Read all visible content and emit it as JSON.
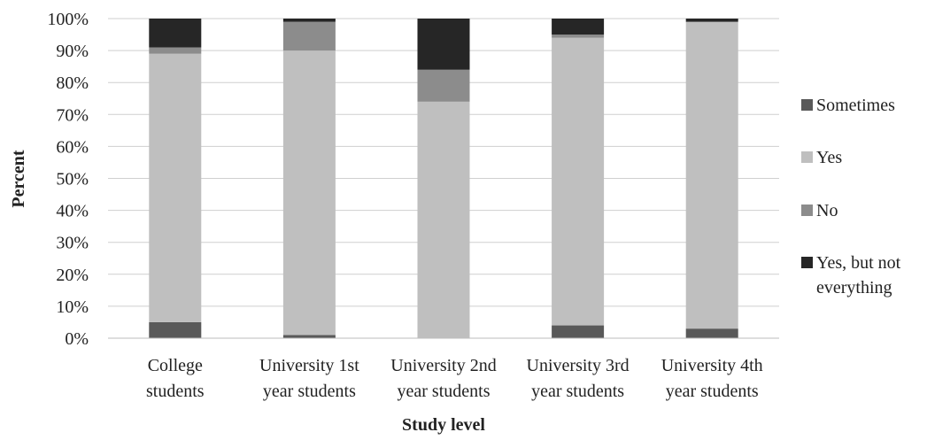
{
  "chart_data": {
    "type": "bar",
    "stacked": true,
    "percent_stacked": true,
    "xlabel": "Study level",
    "ylabel": "Percent",
    "ylim": [
      0,
      100
    ],
    "ytick_values": [
      0,
      10,
      20,
      30,
      40,
      50,
      60,
      70,
      80,
      90,
      100
    ],
    "ytick_labels": [
      "0%",
      "10%",
      "20%",
      "30%",
      "40%",
      "50%",
      "60%",
      "70%",
      "80%",
      "90%",
      "100%"
    ],
    "grid": true,
    "legend_position": "right",
    "categories": [
      [
        "College",
        "students"
      ],
      [
        "University 1st",
        "year students"
      ],
      [
        "University 2nd",
        "year students"
      ],
      [
        "University 3rd",
        "year students"
      ],
      [
        "University 4th",
        "year students"
      ]
    ],
    "series": [
      {
        "name": "Sometimes",
        "color": "#595959",
        "values": [
          5,
          1,
          0,
          4,
          3
        ]
      },
      {
        "name": "Yes",
        "color": "#bfbfbf",
        "values": [
          84,
          89,
          74,
          90,
          96
        ]
      },
      {
        "name": "No",
        "color": "#8c8c8c",
        "values": [
          2,
          9,
          10,
          1,
          0
        ]
      },
      {
        "name": "Yes, but not everything",
        "color": "#262626",
        "values": [
          9,
          1,
          16,
          5,
          1
        ]
      }
    ],
    "legend_labels": [
      [
        "Sometimes"
      ],
      [
        "Yes"
      ],
      [
        "No"
      ],
      [
        "Yes, but not",
        "everything"
      ]
    ]
  }
}
